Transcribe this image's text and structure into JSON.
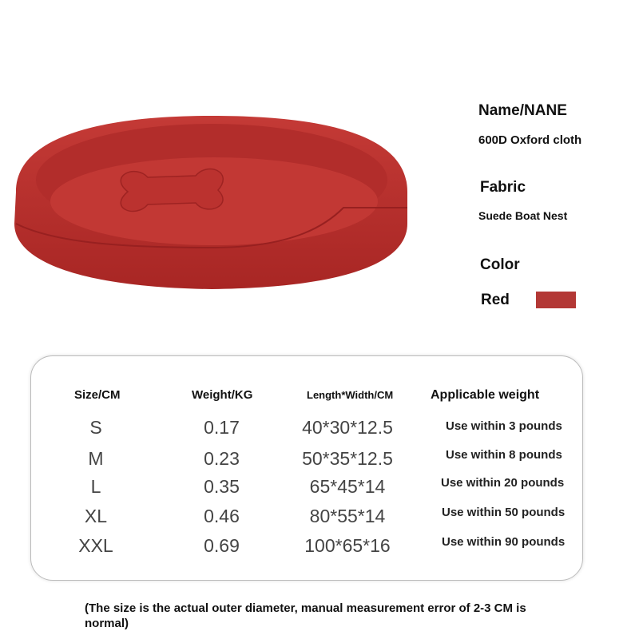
{
  "product": {
    "image": "red-oval-pet-bed-with-bone",
    "colors": {
      "bed": "#b8302e",
      "swatch": "#b33835"
    }
  },
  "specs": {
    "name_label": "Name/NANE",
    "name_value": "600D Oxford cloth",
    "fabric_label": "Fabric",
    "fabric_value": "Suede Boat Nest",
    "color_label": "Color",
    "color_value": "Red"
  },
  "table": {
    "headers": [
      "Size/CM",
      "Weight/KG",
      "Length*Width/CM",
      "Applicable weight"
    ],
    "rows": [
      {
        "size": "S",
        "weight": "0.17",
        "dims": "40*30*12.5",
        "use": "Use within 3 pounds"
      },
      {
        "size": "M",
        "weight": "0.23",
        "dims": "50*35*12.5",
        "use": "Use within 8 pounds"
      },
      {
        "size": "L",
        "weight": "0.35",
        "dims": "65*45*14",
        "use": "Use within 20 pounds"
      },
      {
        "size": "XL",
        "weight": "0.46",
        "dims": "80*55*14",
        "use": "Use within 50 pounds"
      },
      {
        "size": "XXL",
        "weight": "0.69",
        "dims": "100*65*16",
        "use": "Use within 90 pounds"
      }
    ]
  },
  "note": "(The size is the actual outer diameter, manual measurement error of 2-3 CM is normal)"
}
